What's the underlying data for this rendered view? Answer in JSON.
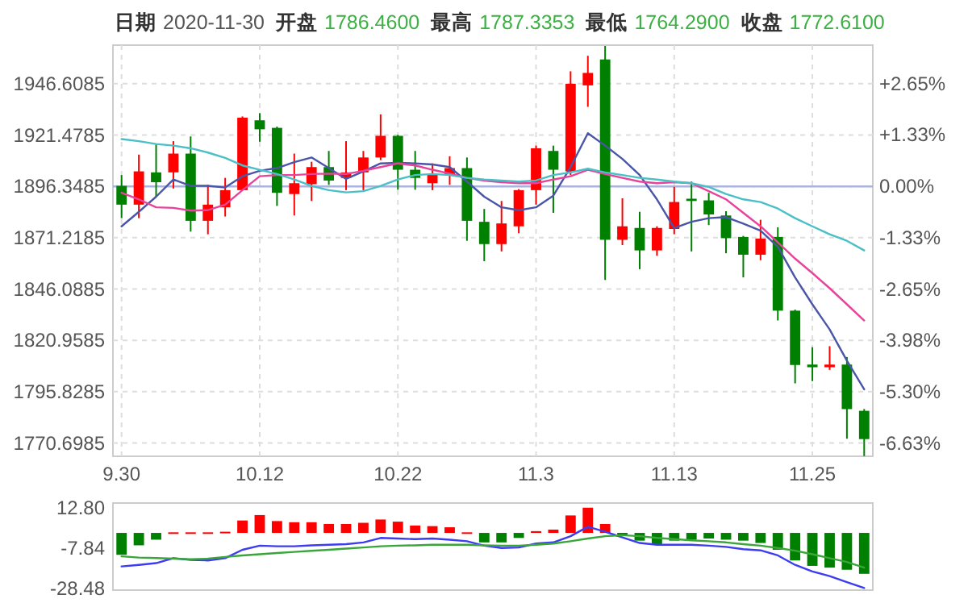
{
  "chart_data": [
    {
      "type": "candlestick",
      "annotations": [
        "日期",
        "2020-11-30",
        "开盘",
        "1786.4600",
        "最高",
        "1787.3353",
        "最低",
        "1764.2900",
        "收盘",
        "1772.6100"
      ],
      "categories": [
        "9.30",
        null,
        null,
        null,
        null,
        null,
        null,
        null,
        "10.12",
        null,
        null,
        null,
        null,
        null,
        null,
        null,
        "10.22",
        null,
        null,
        null,
        null,
        null,
        null,
        null,
        "11.3",
        null,
        null,
        null,
        null,
        null,
        null,
        null,
        "11.13",
        null,
        null,
        null,
        null,
        null,
        null,
        null,
        "11.25",
        null,
        null,
        null
      ],
      "ohlc": [
        [
          1896.6,
          1901.9,
          1880.8,
          1887.4
        ],
        [
          1887.4,
          1911.9,
          1880.8,
          1903.7
        ],
        [
          1903.2,
          1916.9,
          1891.3,
          1898.4
        ],
        [
          1903.2,
          1918.5,
          1895.3,
          1912.4
        ],
        [
          1912.4,
          1920.8,
          1874.2,
          1879.5
        ],
        [
          1879.5,
          1897.1,
          1872.9,
          1887.4
        ],
        [
          1886.1,
          1900.5,
          1881.6,
          1894.5
        ],
        [
          1894.5,
          1930.6,
          1894.5,
          1930.0
        ],
        [
          1928.7,
          1932.2,
          1918.2,
          1924.3
        ],
        [
          1925.0,
          1925.6,
          1886.8,
          1893.2
        ],
        [
          1892.6,
          1912.4,
          1882.1,
          1897.9
        ],
        [
          1897.4,
          1908.4,
          1889.2,
          1905.8
        ],
        [
          1905.8,
          1913.7,
          1897.1,
          1899.2
        ],
        [
          1900.5,
          1918.5,
          1894.5,
          1903.2
        ],
        [
          1903.2,
          1913.7,
          1894.5,
          1910.5
        ],
        [
          1910.5,
          1931.6,
          1909.2,
          1921.1
        ],
        [
          1921.1,
          1921.6,
          1894.7,
          1904.5
        ],
        [
          1904.5,
          1913.7,
          1894.7,
          1900.5
        ],
        [
          1897.9,
          1907.6,
          1894.5,
          1902.4
        ],
        [
          1901.9,
          1911.1,
          1897.1,
          1905.3
        ],
        [
          1905.3,
          1910.5,
          1869.7,
          1879.5
        ],
        [
          1879.0,
          1885.3,
          1859.7,
          1868.1
        ],
        [
          1868.1,
          1889.2,
          1864.5,
          1878.2
        ],
        [
          1876.8,
          1895.0,
          1873.4,
          1894.5
        ],
        [
          1894.5,
          1916.3,
          1887.4,
          1915.0
        ],
        [
          1913.7,
          1916.3,
          1883.4,
          1904.5
        ],
        [
          1903.7,
          1952.7,
          1901.9,
          1946.6
        ],
        [
          1945.8,
          1960.3,
          1935.3,
          1951.9
        ],
        [
          1958.5,
          1965.1,
          1850.5,
          1870.2
        ],
        [
          1870.2,
          1890.5,
          1867.6,
          1876.8
        ],
        [
          1876.0,
          1883.9,
          1855.8,
          1865.0
        ],
        [
          1865.0,
          1876.8,
          1862.4,
          1876.0
        ],
        [
          1875.5,
          1896.1,
          1872.9,
          1888.7
        ],
        [
          1890.3,
          1898.7,
          1864.5,
          1889.2
        ],
        [
          1889.5,
          1893.2,
          1877.4,
          1882.6
        ],
        [
          1882.1,
          1884.2,
          1863.6,
          1871.0
        ],
        [
          1871.6,
          1872.1,
          1851.8,
          1862.9
        ],
        [
          1862.9,
          1880.0,
          1860.2,
          1870.8
        ],
        [
          1871.6,
          1876.3,
          1830.7,
          1835.5
        ],
        [
          1835.5,
          1836.0,
          1799.9,
          1808.9
        ],
        [
          1809.1,
          1817.6,
          1801.0,
          1807.8
        ],
        [
          1807.8,
          1818.1,
          1806.5,
          1809.1
        ],
        [
          1809.1,
          1812.8,
          1772.8,
          1787.3
        ],
        [
          1786.46,
          1787.3353,
          1764.29,
          1772.61
        ]
      ],
      "series": [
        {
          "type": "line",
          "color": "#4a55a8",
          "values": [
            1876.8,
            1883.9,
            1891.3,
            1899.7,
            1896.6,
            1896.6,
            1895.8,
            1901.3,
            1904.0,
            1905.3,
            1908.2,
            1910.5,
            1905.3,
            1900.0,
            1903.7,
            1907.6,
            1907.9,
            1907.6,
            1907.1,
            1905.8,
            1898.7,
            1891.3,
            1886.1,
            1884.7,
            1886.1,
            1891.8,
            1905.8,
            1922.4,
            1916.3,
            1909.8,
            1901.9,
            1890.0,
            1876.0,
            1879.0,
            1880.8,
            1881.3,
            1878.1,
            1874.7,
            1866.8,
            1851.8,
            1838.6,
            1826.3,
            1811.0,
            1797.0
          ]
        },
        {
          "type": "line",
          "color": "#e8439a",
          "values": [
            1893.2,
            1890.0,
            1886.1,
            1885.8,
            1884.5,
            1884.7,
            1887.4,
            1894.5,
            1901.3,
            1901.9,
            1901.9,
            1902.4,
            1902.6,
            1902.4,
            1904.0,
            1905.8,
            1907.6,
            1906.6,
            1904.5,
            1902.6,
            1900.5,
            1899.2,
            1898.4,
            1897.9,
            1897.9,
            1899.7,
            1901.3,
            1904.5,
            1902.4,
            1900.5,
            1898.7,
            1897.9,
            1898.4,
            1897.9,
            1894.0,
            1890.0,
            1883.4,
            1876.8,
            1868.9,
            1861.0,
            1853.9,
            1846.5,
            1838.6,
            1830.7
          ]
        },
        {
          "type": "line",
          "color": "#4bbfc6",
          "values": [
            1919.5,
            1918.5,
            1917.1,
            1916.3,
            1915.0,
            1912.9,
            1910.3,
            1906.6,
            1904.5,
            1902.4,
            1899.7,
            1896.6,
            1894.5,
            1893.4,
            1894.0,
            1896.6,
            1899.7,
            1901.9,
            1902.4,
            1901.9,
            1900.5,
            1899.7,
            1899.2,
            1898.7,
            1899.2,
            1901.9,
            1903.2,
            1905.0,
            1903.2,
            1901.9,
            1900.5,
            1899.7,
            1898.7,
            1897.9,
            1896.1,
            1892.6,
            1890.0,
            1888.7,
            1885.5,
            1880.8,
            1876.8,
            1872.9,
            1869.7,
            1865.0
          ]
        }
      ],
      "ylim": [
        1764.2,
        1965.5
      ],
      "yticks": [
        1946.6085,
        1921.4785,
        1896.3485,
        1871.2185,
        1846.0885,
        1820.9585,
        1795.8285,
        1770.6985
      ],
      "y2lim": [
        -6.969,
        3.647
      ],
      "y2ticks": [
        {
          "value": 2.65,
          "label": "+2.65%"
        },
        {
          "value": 1.33,
          "label": "+1.33%"
        },
        {
          "value": 0,
          "label": "0.00%"
        },
        {
          "value": -1.33,
          "label": "-1.33%"
        },
        {
          "value": -2.65,
          "label": "-2.65%"
        },
        {
          "value": -3.98,
          "label": "-3.98%"
        },
        {
          "value": -5.3,
          "label": "-5.30%"
        },
        {
          "value": -6.63,
          "label": "-6.63%"
        }
      ],
      "ref_lines": [
        {
          "axis": "y2",
          "value": 0,
          "color": "#a9b3dd"
        }
      ],
      "grid": true
    },
    {
      "type": "bar",
      "categories": [
        "9.30",
        null,
        null,
        null,
        null,
        null,
        null,
        null,
        "10.12",
        null,
        null,
        null,
        null,
        null,
        null,
        null,
        "10.22",
        null,
        null,
        null,
        null,
        null,
        null,
        null,
        "11.3",
        null,
        null,
        null,
        null,
        null,
        null,
        null,
        "11.13",
        null,
        null,
        null,
        null,
        null,
        null,
        null,
        "11.25",
        null,
        null,
        null
      ],
      "series": [
        {
          "type": "bar",
          "values": [
            -11.3,
            -6.4,
            -3.5,
            0.3,
            0.3,
            0.3,
            0.6,
            6.4,
            9.2,
            6.1,
            5.5,
            5.5,
            4.6,
            4.6,
            5.2,
            6.9,
            5.8,
            3.8,
            3.5,
            2.9,
            0.3,
            -4.9,
            -4.9,
            -2.6,
            0.9,
            1.7,
            9.0,
            13.0,
            4.6,
            -0.3,
            -4.0,
            -5.8,
            -4.0,
            -3.5,
            -2.9,
            -3.5,
            -4.0,
            -5.2,
            -8.7,
            -14.2,
            -17.0,
            -17.9,
            -19.0,
            -21.1
          ],
          "colors": [
            "#008000",
            "#008000",
            "#008000",
            "#ff0000",
            "#ff0000",
            "#ff0000",
            "#ff0000",
            "#ff0000",
            "#ff0000",
            "#ff0000",
            "#ff0000",
            "#ff0000",
            "#ff0000",
            "#ff0000",
            "#ff0000",
            "#ff0000",
            "#ff0000",
            "#ff0000",
            "#ff0000",
            "#ff0000",
            "#ff0000",
            "#008000",
            "#008000",
            "#008000",
            "#ff0000",
            "#ff0000",
            "#ff0000",
            "#ff0000",
            "#ff0000",
            "#008000",
            "#008000",
            "#008000",
            "#008000",
            "#008000",
            "#008000",
            "#008000",
            "#008000",
            "#008000",
            "#008000",
            "#008000",
            "#008000",
            "#008000",
            "#008000",
            "#008000"
          ]
        },
        {
          "type": "line",
          "color": "#3c3cf0",
          "values": [
            -17.3,
            -16.5,
            -15.6,
            -13.0,
            -13.9,
            -14.2,
            -13.0,
            -8.7,
            -6.6,
            -6.9,
            -6.9,
            -6.4,
            -6.1,
            -5.8,
            -4.9,
            -2.6,
            -2.9,
            -3.2,
            -2.9,
            -3.5,
            -4.3,
            -6.6,
            -7.8,
            -7.5,
            -5.5,
            -4.9,
            -1.7,
            3.2,
            0.6,
            -2.3,
            -5.2,
            -6.1,
            -6.1,
            -6.1,
            -6.6,
            -7.2,
            -8.4,
            -9.0,
            -11.6,
            -16.5,
            -19.9,
            -22.3,
            -25.4,
            -28.4
          ]
        },
        {
          "type": "line",
          "color": "#3aa63a",
          "values": [
            -12.1,
            -12.7,
            -13.0,
            -13.3,
            -13.6,
            -13.3,
            -12.4,
            -11.6,
            -11.0,
            -10.4,
            -9.8,
            -9.2,
            -8.7,
            -8.1,
            -7.5,
            -6.9,
            -6.6,
            -6.4,
            -6.1,
            -6.1,
            -6.1,
            -6.4,
            -6.6,
            -6.6,
            -6.1,
            -5.5,
            -4.3,
            -2.9,
            -1.7,
            -1.2,
            -1.7,
            -2.6,
            -3.2,
            -3.8,
            -4.3,
            -4.9,
            -5.8,
            -6.6,
            -7.8,
            -9.2,
            -11.0,
            -13.0,
            -15.0,
            -17.9
          ]
        }
      ],
      "ylim": [
        -29.5,
        15.4
      ],
      "yticks": [
        {
          "value": 12.8,
          "label": "12.80"
        },
        -7.84,
        -28.48
      ],
      "tick_labels": "y"
    }
  ]
}
